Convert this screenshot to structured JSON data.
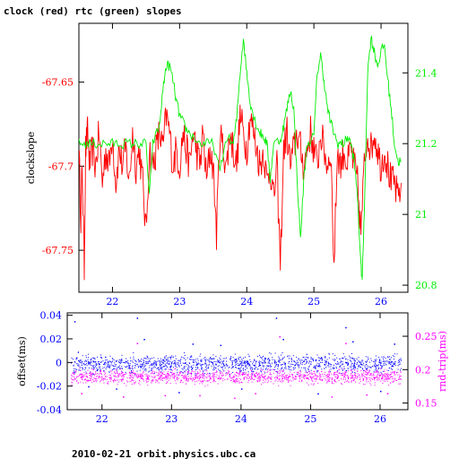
{
  "page": {
    "title": "clock (red) rtc (green) slopes",
    "footer": "2010-02-21 orbit.physics.ubc.ca"
  },
  "colors": {
    "clock": "#ff0000",
    "rtc": "#00ee00",
    "offset": "#0000ff",
    "rndtrip": "#ff00ff",
    "axis": "#000000"
  },
  "chart_data": [
    {
      "type": "line",
      "title": "clock (red) rtc (green) slopes",
      "xlabel": "",
      "ylabel": "clockslope",
      "y2label": "",
      "xlim": [
        21.5,
        26.4
      ],
      "ylim": [
        -67.775,
        -67.615
      ],
      "y2lim": [
        20.78,
        21.54
      ],
      "grid": false,
      "x_ticks": [
        22,
        23,
        24,
        25,
        26
      ],
      "y_ticks": [
        -67.65,
        -67.7,
        -67.75
      ],
      "y_tick_labels": [
        "-67.65",
        "-67.7",
        "-67.75"
      ],
      "y2_ticks": [
        21.4,
        21.2,
        21.0,
        20.8
      ],
      "y2_tick_labels": [
        "21.4",
        "21.2",
        "21",
        "20.8"
      ],
      "series": [
        {
          "axis": "left",
          "color": "#ff0000",
          "points": [
            [
              21.5,
              -67.69
            ],
            [
              21.53,
              -67.73
            ],
            [
              21.55,
              -67.7
            ],
            [
              21.58,
              -67.76
            ],
            [
              21.6,
              -67.69
            ],
            [
              21.63,
              -67.68
            ],
            [
              21.66,
              -67.7
            ],
            [
              21.7,
              -67.69
            ],
            [
              21.75,
              -67.7
            ],
            [
              21.8,
              -67.68
            ],
            [
              21.85,
              -67.71
            ],
            [
              21.9,
              -67.69
            ],
            [
              21.95,
              -67.7
            ],
            [
              22.0,
              -67.68
            ],
            [
              22.05,
              -67.71
            ],
            [
              22.1,
              -67.69
            ],
            [
              22.15,
              -67.7
            ],
            [
              22.2,
              -67.69
            ],
            [
              22.25,
              -67.71
            ],
            [
              22.3,
              -67.68
            ],
            [
              22.35,
              -67.7
            ],
            [
              22.4,
              -67.69
            ],
            [
              22.45,
              -67.71
            ],
            [
              22.5,
              -67.74
            ],
            [
              22.55,
              -67.69
            ],
            [
              22.6,
              -67.7
            ],
            [
              22.65,
              -67.69
            ],
            [
              22.7,
              -67.68
            ],
            [
              22.75,
              -67.69
            ],
            [
              22.8,
              -67.67
            ],
            [
              22.85,
              -67.68
            ],
            [
              22.9,
              -67.7
            ],
            [
              22.95,
              -67.69
            ],
            [
              23.0,
              -67.7
            ],
            [
              23.05,
              -67.68
            ],
            [
              23.1,
              -67.69
            ],
            [
              23.15,
              -67.7
            ],
            [
              23.2,
              -67.68
            ],
            [
              23.25,
              -67.69
            ],
            [
              23.3,
              -67.7
            ],
            [
              23.35,
              -67.68
            ],
            [
              23.4,
              -67.71
            ],
            [
              23.45,
              -67.69
            ],
            [
              23.5,
              -67.7
            ],
            [
              23.55,
              -67.74
            ],
            [
              23.6,
              -67.68
            ],
            [
              23.65,
              -67.69
            ],
            [
              23.7,
              -67.7
            ],
            [
              23.75,
              -67.68
            ],
            [
              23.8,
              -67.69
            ],
            [
              23.85,
              -67.7
            ],
            [
              23.9,
              -67.67
            ],
            [
              23.95,
              -67.68
            ],
            [
              24.0,
              -67.69
            ],
            [
              24.05,
              -67.67
            ],
            [
              24.1,
              -67.68
            ],
            [
              24.15,
              -67.69
            ],
            [
              24.2,
              -67.7
            ],
            [
              24.25,
              -67.69
            ],
            [
              24.3,
              -67.71
            ],
            [
              24.35,
              -67.7
            ],
            [
              24.4,
              -67.72
            ],
            [
              24.45,
              -67.7
            ],
            [
              24.5,
              -67.76
            ],
            [
              24.55,
              -67.69
            ],
            [
              24.6,
              -67.68
            ],
            [
              24.65,
              -67.7
            ],
            [
              24.7,
              -67.69
            ],
            [
              24.75,
              -67.68
            ],
            [
              24.8,
              -67.69
            ],
            [
              24.85,
              -67.7
            ],
            [
              24.9,
              -67.69
            ],
            [
              24.95,
              -67.68
            ],
            [
              25.0,
              -67.69
            ],
            [
              25.05,
              -67.7
            ],
            [
              25.1,
              -67.68
            ],
            [
              25.15,
              -67.69
            ],
            [
              25.2,
              -67.7
            ],
            [
              25.25,
              -67.69
            ],
            [
              25.3,
              -67.76
            ],
            [
              25.35,
              -67.69
            ],
            [
              25.4,
              -67.7
            ],
            [
              25.45,
              -67.69
            ],
            [
              25.5,
              -67.7
            ],
            [
              25.55,
              -67.69
            ],
            [
              25.6,
              -67.7
            ],
            [
              25.65,
              -67.71
            ],
            [
              25.7,
              -67.74
            ],
            [
              25.75,
              -67.7
            ],
            [
              25.8,
              -67.68
            ],
            [
              25.85,
              -67.69
            ],
            [
              25.9,
              -67.68
            ],
            [
              25.95,
              -67.69
            ],
            [
              26.0,
              -67.7
            ],
            [
              26.05,
              -67.69
            ],
            [
              26.1,
              -67.7
            ],
            [
              26.15,
              -67.71
            ],
            [
              26.2,
              -67.71
            ],
            [
              26.25,
              -67.72
            ],
            [
              26.3,
              -67.71
            ]
          ]
        },
        {
          "axis": "right",
          "color": "#00ee00",
          "points": [
            [
              21.5,
              21.2
            ],
            [
              21.6,
              21.2
            ],
            [
              21.7,
              21.2
            ],
            [
              21.8,
              21.2
            ],
            [
              21.9,
              21.2
            ],
            [
              22.0,
              21.2
            ],
            [
              22.1,
              21.2
            ],
            [
              22.2,
              21.2
            ],
            [
              22.3,
              21.2
            ],
            [
              22.4,
              21.2
            ],
            [
              22.5,
              21.2
            ],
            [
              22.55,
              21.05
            ],
            [
              22.6,
              21.2
            ],
            [
              22.7,
              21.25
            ],
            [
              22.75,
              21.35
            ],
            [
              22.8,
              21.42
            ],
            [
              22.85,
              21.42
            ],
            [
              22.9,
              21.38
            ],
            [
              22.95,
              21.32
            ],
            [
              23.0,
              21.28
            ],
            [
              23.05,
              21.26
            ],
            [
              23.1,
              21.24
            ],
            [
              23.2,
              21.22
            ],
            [
              23.3,
              21.2
            ],
            [
              23.4,
              21.2
            ],
            [
              23.5,
              21.2
            ],
            [
              23.6,
              21.12
            ],
            [
              23.7,
              21.22
            ],
            [
              23.8,
              21.2
            ],
            [
              23.85,
              21.27
            ],
            [
              23.9,
              21.4
            ],
            [
              23.95,
              21.5
            ],
            [
              24.0,
              21.4
            ],
            [
              24.05,
              21.32
            ],
            [
              24.1,
              21.28
            ],
            [
              24.15,
              21.25
            ],
            [
              24.2,
              21.23
            ],
            [
              24.25,
              21.22
            ],
            [
              24.3,
              21.2
            ],
            [
              24.35,
              21.1
            ],
            [
              24.4,
              21.2
            ],
            [
              24.5,
              21.21
            ],
            [
              24.55,
              21.25
            ],
            [
              24.6,
              21.3
            ],
            [
              24.65,
              21.35
            ],
            [
              24.7,
              21.3
            ],
            [
              24.75,
              21.1
            ],
            [
              24.8,
              20.93
            ],
            [
              24.85,
              21.1
            ],
            [
              24.9,
              21.2
            ],
            [
              25.0,
              21.22
            ],
            [
              25.05,
              21.4
            ],
            [
              25.1,
              21.45
            ],
            [
              25.15,
              21.38
            ],
            [
              25.2,
              21.3
            ],
            [
              25.25,
              21.26
            ],
            [
              25.3,
              21.23
            ],
            [
              25.35,
              21.2
            ],
            [
              25.4,
              21.2
            ],
            [
              25.45,
              21.2
            ],
            [
              25.5,
              21.22
            ],
            [
              25.55,
              21.2
            ],
            [
              25.6,
              21.15
            ],
            [
              25.65,
              21.05
            ],
            [
              25.7,
              20.85
            ],
            [
              25.72,
              20.82
            ],
            [
              25.75,
              21.0
            ],
            [
              25.8,
              21.4
            ],
            [
              25.85,
              21.5
            ],
            [
              25.9,
              21.46
            ],
            [
              25.95,
              21.42
            ],
            [
              26.0,
              21.46
            ],
            [
              26.05,
              21.48
            ],
            [
              26.1,
              21.38
            ],
            [
              26.15,
              21.3
            ],
            [
              26.2,
              21.2
            ],
            [
              26.25,
              21.15
            ],
            [
              26.3,
              21.15
            ]
          ]
        }
      ]
    },
    {
      "type": "scatter",
      "xlabel": "",
      "ylabel": "offset(ms)",
      "y2label": "rnd-trip(ms)",
      "xlim": [
        21.5,
        26.4
      ],
      "ylim": [
        -0.04,
        0.042
      ],
      "y2lim": [
        0.14,
        0.285
      ],
      "grid": false,
      "x_ticks": [
        22,
        23,
        24,
        25,
        26
      ],
      "y_ticks": [
        0.04,
        0.02,
        0,
        -0.02,
        -0.04
      ],
      "y_tick_labels": [
        "0.04",
        "0.02",
        "0",
        "-0.02",
        "-0.04"
      ],
      "y2_ticks": [
        0.25,
        0.2,
        0.15
      ],
      "y2_tick_labels": [
        "0.25",
        "0.2",
        "0.15"
      ],
      "series": [
        {
          "axis": "left",
          "color": "#0000ff",
          "dense_band": [
            -0.012,
            0.01
          ],
          "points": [
            [
              21.6,
              0.035
            ],
            [
              22.5,
              0.038
            ],
            [
              24.5,
              0.038
            ],
            [
              25.5,
              0.03
            ],
            [
              21.8,
              -0.02
            ],
            [
              22.6,
              0.02
            ],
            [
              23.3,
              0.016
            ],
            [
              24.6,
              0.02
            ],
            [
              25.6,
              0.018
            ],
            [
              26.2,
              0.016
            ],
            [
              22.2,
              -0.022
            ],
            [
              23.1,
              -0.025
            ],
            [
              24.0,
              -0.022
            ],
            [
              25.1,
              -0.026
            ],
            [
              26.0,
              -0.024
            ],
            [
              23.7,
              0.015
            ]
          ]
        },
        {
          "axis": "right",
          "color": "#ff00ff",
          "dense_band": [
            0.175,
            0.205
          ],
          "points": [
            [
              22.5,
              0.24
            ],
            [
              24.55,
              0.25
            ],
            [
              25.5,
              0.24
            ],
            [
              21.7,
              0.165
            ],
            [
              22.3,
              0.16
            ],
            [
              23.4,
              0.162
            ],
            [
              24.2,
              0.165
            ],
            [
              25.3,
              0.16
            ],
            [
              26.1,
              0.165
            ],
            [
              23.9,
              0.158
            ],
            [
              22.9,
              0.162
            ],
            [
              25.8,
              0.163
            ]
          ]
        }
      ]
    }
  ]
}
